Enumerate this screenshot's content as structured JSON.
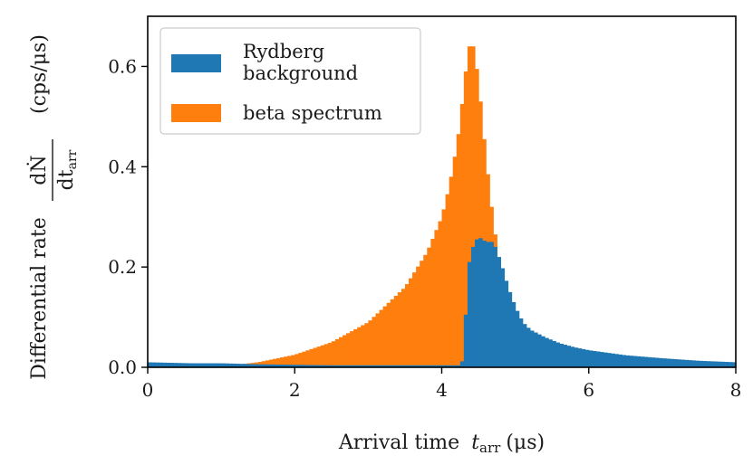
{
  "chart_data": {
    "type": "bar",
    "histogram": true,
    "stacked": true,
    "bin_width": 0.05,
    "xlabel": "Arrival time",
    "xlabel_symbol": "t",
    "xlabel_sub": "arr",
    "xlabel_unit": "(μs)",
    "ylabel_text": "Differential rate",
    "ylabel_frac_num": "dṄ",
    "ylabel_frac_den": "dt",
    "ylabel_frac_den_sub": "arr",
    "ylabel_unit": "(cps/μs)",
    "xlim": [
      0,
      8
    ],
    "ylim": [
      0,
      0.7
    ],
    "xticks": [
      "0",
      "2",
      "4",
      "6",
      "8"
    ],
    "yticks": [
      "0.0",
      "0.2",
      "0.4",
      "0.6"
    ],
    "grid": false,
    "legend_position": "top-left",
    "legend": [
      {
        "label_line1": "Rydberg",
        "label_line2": "background",
        "color": "#1f77b4"
      },
      {
        "label_line1": "beta spectrum",
        "label_line2": "",
        "color": "#ff7f0e"
      }
    ],
    "series": [
      {
        "name": "Rydberg background",
        "color": "#1f77b4",
        "points": [
          [
            0.0,
            0.01
          ],
          [
            0.3,
            0.009
          ],
          [
            0.6,
            0.008
          ],
          [
            1.0,
            0.008
          ],
          [
            1.5,
            0.006
          ],
          [
            2.0,
            0.005
          ],
          [
            2.5,
            0.004
          ],
          [
            3.0,
            0.004
          ],
          [
            3.5,
            0.004
          ],
          [
            4.0,
            0.004
          ],
          [
            4.25,
            0.004
          ],
          [
            4.3,
            0.02
          ],
          [
            4.35,
            0.19
          ],
          [
            4.4,
            0.23
          ],
          [
            4.45,
            0.25
          ],
          [
            4.5,
            0.26
          ],
          [
            4.6,
            0.25
          ],
          [
            4.7,
            0.25
          ],
          [
            4.75,
            0.23
          ],
          [
            4.8,
            0.21
          ],
          [
            4.9,
            0.16
          ],
          [
            5.0,
            0.12
          ],
          [
            5.1,
            0.09
          ],
          [
            5.2,
            0.075
          ],
          [
            5.4,
            0.06
          ],
          [
            5.6,
            0.048
          ],
          [
            5.8,
            0.04
          ],
          [
            6.0,
            0.034
          ],
          [
            6.5,
            0.024
          ],
          [
            7.0,
            0.018
          ],
          [
            7.5,
            0.013
          ],
          [
            8.0,
            0.01
          ]
        ]
      },
      {
        "name": "beta spectrum",
        "color": "#ff7f0e",
        "points": [
          [
            0.0,
            0.0
          ],
          [
            1.0,
            0.0
          ],
          [
            1.2,
            0.005
          ],
          [
            1.5,
            0.01
          ],
          [
            2.0,
            0.025
          ],
          [
            2.5,
            0.05
          ],
          [
            3.0,
            0.09
          ],
          [
            3.5,
            0.16
          ],
          [
            3.8,
            0.23
          ],
          [
            4.0,
            0.3
          ],
          [
            4.1,
            0.36
          ],
          [
            4.2,
            0.44
          ],
          [
            4.25,
            0.49
          ],
          [
            4.3,
            0.56
          ],
          [
            4.35,
            0.62
          ],
          [
            4.4,
            0.66
          ],
          [
            4.45,
            0.62
          ],
          [
            4.5,
            0.57
          ],
          [
            4.55,
            0.49
          ],
          [
            4.6,
            0.42
          ],
          [
            4.65,
            0.35
          ],
          [
            4.7,
            0.29
          ],
          [
            4.75,
            0.24
          ],
          [
            4.8,
            0.18
          ],
          [
            4.85,
            0.0
          ]
        ]
      }
    ]
  }
}
